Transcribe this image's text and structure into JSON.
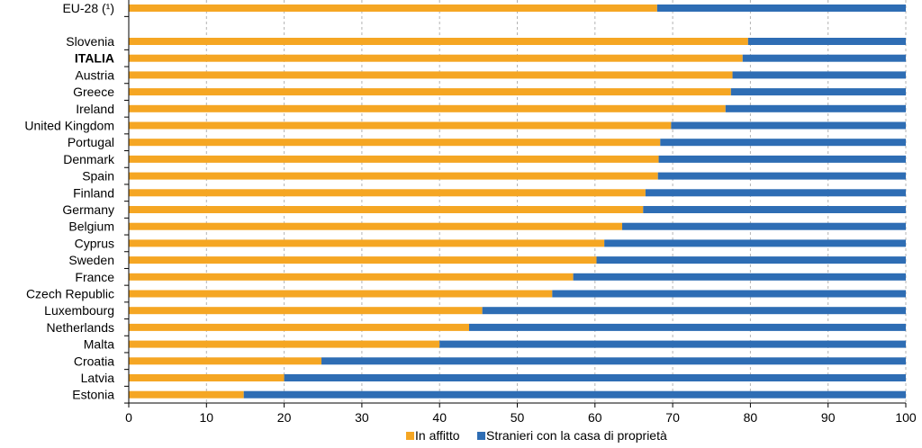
{
  "chart_data": {
    "type": "bar",
    "orientation": "horizontal",
    "stacked": true,
    "categories": [
      "EU-28 (¹)",
      "Slovenia",
      "ITALIA",
      "Austria",
      "Greece",
      "Ireland",
      "United Kingdom",
      "Portugal",
      "Denmark",
      "Spain",
      "Finland",
      "Germany",
      "Belgium",
      "Cyprus",
      "Sweden",
      "France",
      "Czech Republic",
      "Luxembourg",
      "Netherlands",
      "Malta",
      "Croatia",
      "Latvia",
      "Estonia"
    ],
    "highlight_category": "ITALIA",
    "series": [
      {
        "name": "In affitto",
        "color": "#F5A623",
        "values": [
          68,
          79.7,
          79,
          77.7,
          77.5,
          76.8,
          69.8,
          68.4,
          68.2,
          68.1,
          66.5,
          66.2,
          63.5,
          61.2,
          60.2,
          57.2,
          54.5,
          45.5,
          43.8,
          40,
          24.8,
          20,
          14.8
        ]
      },
      {
        "name": "Stranieri con la casa di proprietà",
        "color": "#2E6DB4",
        "values": [
          32,
          20.3,
          21,
          22.3,
          22.5,
          23.2,
          30.2,
          31.6,
          31.8,
          31.9,
          33.5,
          33.8,
          36.5,
          38.8,
          39.8,
          42.8,
          45.5,
          54.5,
          56.2,
          60,
          75.2,
          80,
          85.2
        ]
      }
    ],
    "xlim": [
      0,
      100
    ],
    "xticks": [
      0,
      10,
      20,
      30,
      40,
      50,
      60,
      70,
      80,
      90,
      100
    ],
    "grid": true,
    "legend_position": "bottom"
  }
}
